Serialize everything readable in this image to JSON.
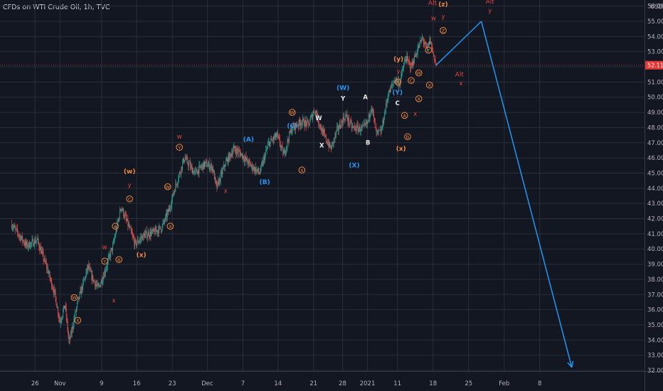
{
  "header": {
    "title": "CFDs on WTI Crude Oil, 1h, TVC"
  },
  "colors": {
    "bg": "#131722",
    "grid": "#2a2e39",
    "axis_text": "#b2b5be",
    "bull": "#26a69a",
    "bear": "#ef5350",
    "blue": "#2196f3",
    "orange": "#f0883e",
    "red": "#e0433f",
    "white": "#e8e8e8",
    "price_label_bg": "#e53935"
  },
  "chart_data": {
    "type": "candlestick",
    "y_axis": {
      "currency": "USD",
      "range": [
        31.6,
        56.6
      ],
      "ticks": [
        "32.00",
        "33.00",
        "34.00",
        "35.00",
        "36.00",
        "37.00",
        "38.00",
        "39.00",
        "40.00",
        "41.00",
        "42.00",
        "43.00",
        "44.00",
        "45.00",
        "46.00",
        "47.00",
        "48.00",
        "49.00",
        "50.00",
        "51.00",
        "52.00",
        "53.00",
        "54.00",
        "55.00",
        "56.00"
      ]
    },
    "x_axis": {
      "ticks": [
        "26",
        "Nov",
        "9",
        "16",
        "23",
        "Dec",
        "7",
        "14",
        "21",
        "28",
        "2021",
        "11",
        "18",
        "25",
        "Feb",
        "8"
      ],
      "tick_days": [
        -6.4,
        -1.5,
        6.7,
        13.6,
        20.6,
        27.5,
        34.5,
        41.4,
        48.4,
        54.1,
        59.0,
        64.9,
        71.9,
        78.9,
        85.9,
        92.9
      ]
    },
    "current_price": {
      "value": 52.11,
      "label": "52.11"
    },
    "price_path": [
      [
        -11,
        41.6
      ],
      [
        -8,
        40.2
      ],
      [
        -6,
        40.6
      ],
      [
        -4,
        38.7
      ],
      [
        -2.5,
        37.0
      ],
      [
        -1.5,
        35.2
      ],
      [
        -0.5,
        36.3
      ],
      [
        0.3,
        33.8
      ],
      [
        2,
        36.5
      ],
      [
        4,
        38.8
      ],
      [
        5,
        38.0
      ],
      [
        6,
        37.4
      ],
      [
        7,
        38.2
      ],
      [
        9,
        40.3
      ],
      [
        10.5,
        42.8
      ],
      [
        12,
        41.5
      ],
      [
        13.3,
        40.3
      ],
      [
        15,
        40.9
      ],
      [
        17,
        41.1
      ],
      [
        18.5,
        41.4
      ],
      [
        20,
        42.6
      ],
      [
        21,
        43.9
      ],
      [
        23,
        46.0
      ],
      [
        25,
        45.0
      ],
      [
        27,
        45.6
      ],
      [
        28.5,
        45.4
      ],
      [
        29.3,
        44.0
      ],
      [
        31,
        45.6
      ],
      [
        32.7,
        46.6
      ],
      [
        34,
        46.3
      ],
      [
        36,
        45.5
      ],
      [
        37.8,
        45.0
      ],
      [
        39.5,
        46.9
      ],
      [
        41.2,
        47.5
      ],
      [
        42.5,
        46.2
      ],
      [
        44,
        47.9
      ],
      [
        46,
        48.4
      ],
      [
        47.4,
        48.2
      ],
      [
        48.6,
        49.2
      ],
      [
        50,
        47.8
      ],
      [
        51.8,
        46.6
      ],
      [
        53,
        47.8
      ],
      [
        54.7,
        48.8
      ],
      [
        56,
        48.0
      ],
      [
        58,
        47.9
      ],
      [
        59,
        48.3
      ],
      [
        59.8,
        49.5
      ],
      [
        60.7,
        47.6
      ],
      [
        61.7,
        47.7
      ],
      [
        63,
        50.1
      ],
      [
        64.4,
        51.2
      ],
      [
        65.3,
        50.9
      ],
      [
        66.5,
        52.6
      ],
      [
        67.6,
        52.0
      ],
      [
        68.7,
        53.0
      ],
      [
        69.8,
        53.9
      ],
      [
        70.7,
        53.1
      ],
      [
        71.3,
        53.8
      ],
      [
        72,
        52.8
      ],
      [
        72.5,
        52.11
      ]
    ],
    "projection": [
      {
        "day": 72.5,
        "price": 52.11
      },
      {
        "day": 81.4,
        "price": 55.0
      },
      {
        "day": 99.2,
        "price": 32.2
      }
    ],
    "annotations": [
      {
        "text": "(w)",
        "day": 12.2,
        "price": 45.1,
        "color": "orange"
      },
      {
        "text": "y",
        "day": 12.2,
        "price": 44.2,
        "color": "red"
      },
      {
        "text": "C",
        "day": 12.2,
        "price": 43.3,
        "color": "orange",
        "circled": true
      },
      {
        "text": "A",
        "day": 9.4,
        "price": 41.5,
        "color": "orange",
        "circled": true
      },
      {
        "text": "B",
        "day": 10.1,
        "price": 39.3,
        "color": "orange",
        "circled": true
      },
      {
        "text": "(x)",
        "day": 14.5,
        "price": 39.6,
        "color": "orange"
      },
      {
        "text": "w",
        "day": 7.3,
        "price": 40.1,
        "color": "red"
      },
      {
        "text": "Y",
        "day": 7.3,
        "price": 39.2,
        "color": "orange",
        "circled": true
      },
      {
        "text": "x",
        "day": 9.1,
        "price": 36.6,
        "color": "red"
      },
      {
        "text": "W",
        "day": 1.3,
        "price": 36.8,
        "color": "orange",
        "circled": true
      },
      {
        "text": "X",
        "day": 2.0,
        "price": 35.3,
        "color": "orange",
        "circled": true
      },
      {
        "text": "W",
        "day": 19.7,
        "price": 44.1,
        "color": "orange",
        "circled": true
      },
      {
        "text": "X",
        "day": 20.2,
        "price": 41.5,
        "color": "orange",
        "circled": true
      },
      {
        "text": "w",
        "day": 22.0,
        "price": 47.4,
        "color": "red"
      },
      {
        "text": "Y",
        "day": 22.0,
        "price": 46.7,
        "color": "orange",
        "circled": true
      },
      {
        "text": "x",
        "day": 31.1,
        "price": 43.8,
        "color": "red"
      },
      {
        "text": "(A)",
        "day": 35.6,
        "price": 47.2,
        "color": "blue"
      },
      {
        "text": "(B)",
        "day": 38.8,
        "price": 44.4,
        "color": "blue"
      },
      {
        "text": "W",
        "day": 44.2,
        "price": 49.0,
        "color": "orange",
        "circled": true
      },
      {
        "text": "(C)",
        "day": 44.2,
        "price": 48.1,
        "color": "blue"
      },
      {
        "text": "X",
        "day": 46.1,
        "price": 45.2,
        "color": "orange",
        "circled": true
      },
      {
        "text": "W",
        "day": 49.4,
        "price": 48.6,
        "color": "white"
      },
      {
        "text": "X",
        "day": 50.0,
        "price": 46.8,
        "color": "white"
      },
      {
        "text": "(W)",
        "day": 54.2,
        "price": 50.6,
        "color": "blue"
      },
      {
        "text": "Y",
        "day": 54.2,
        "price": 49.9,
        "color": "white"
      },
      {
        "text": "(X)",
        "day": 56.4,
        "price": 45.5,
        "color": "blue"
      },
      {
        "text": "A",
        "day": 58.6,
        "price": 50.0,
        "color": "white"
      },
      {
        "text": "B",
        "day": 59.1,
        "price": 47.0,
        "color": "white"
      },
      {
        "text": "(y)",
        "day": 65.1,
        "price": 52.5,
        "color": "orange"
      },
      {
        "text": "y",
        "day": 65.1,
        "price": 51.7,
        "color": "red"
      },
      {
        "text": "Y",
        "day": 65.0,
        "price": 51.0,
        "color": "orange",
        "circled": true
      },
      {
        "text": "(Y)",
        "day": 64.9,
        "price": 50.3,
        "color": "blue"
      },
      {
        "text": "C",
        "day": 64.9,
        "price": 49.6,
        "color": "white"
      },
      {
        "text": "(x)",
        "day": 65.6,
        "price": 46.6,
        "color": "orange"
      },
      {
        "text": "A",
        "day": 66.3,
        "price": 48.8,
        "color": "orange",
        "circled": true
      },
      {
        "text": "B",
        "day": 66.9,
        "price": 47.4,
        "color": "orange",
        "circled": true
      },
      {
        "text": "C",
        "day": 67.6,
        "price": 51.1,
        "color": "orange",
        "circled": true
      },
      {
        "text": "w",
        "day": 67.8,
        "price": 52.2,
        "color": "red"
      },
      {
        "text": "W",
        "day": 69.1,
        "price": 51.6,
        "color": "orange",
        "circled": true
      },
      {
        "text": "X",
        "day": 69.1,
        "price": 49.9,
        "color": "orange",
        "circled": true
      },
      {
        "text": "x",
        "day": 68.4,
        "price": 48.9,
        "color": "red"
      },
      {
        "text": "Y",
        "day": 71.0,
        "price": 53.1,
        "color": "orange",
        "circled": true
      },
      {
        "text": "X",
        "day": 71.2,
        "price": 50.8,
        "color": "orange",
        "circled": true
      },
      {
        "text": "Alt",
        "day": 71.8,
        "price": 56.2,
        "color": "red"
      },
      {
        "text": "w",
        "day": 72.0,
        "price": 55.2,
        "color": "red"
      },
      {
        "text": "(z)",
        "day": 73.9,
        "price": 56.1,
        "color": "orange"
      },
      {
        "text": "y",
        "day": 73.9,
        "price": 55.3,
        "color": "red"
      },
      {
        "text": "Z",
        "day": 73.9,
        "price": 54.4,
        "color": "orange",
        "circled": true
      },
      {
        "text": "Alt",
        "day": 77.1,
        "price": 51.5,
        "color": "red"
      },
      {
        "text": "x",
        "day": 77.4,
        "price": 50.9,
        "color": "red"
      },
      {
        "text": "Alt",
        "day": 83.1,
        "price": 56.3,
        "color": "red"
      },
      {
        "text": "y",
        "day": 83.1,
        "price": 55.7,
        "color": "red"
      }
    ]
  }
}
